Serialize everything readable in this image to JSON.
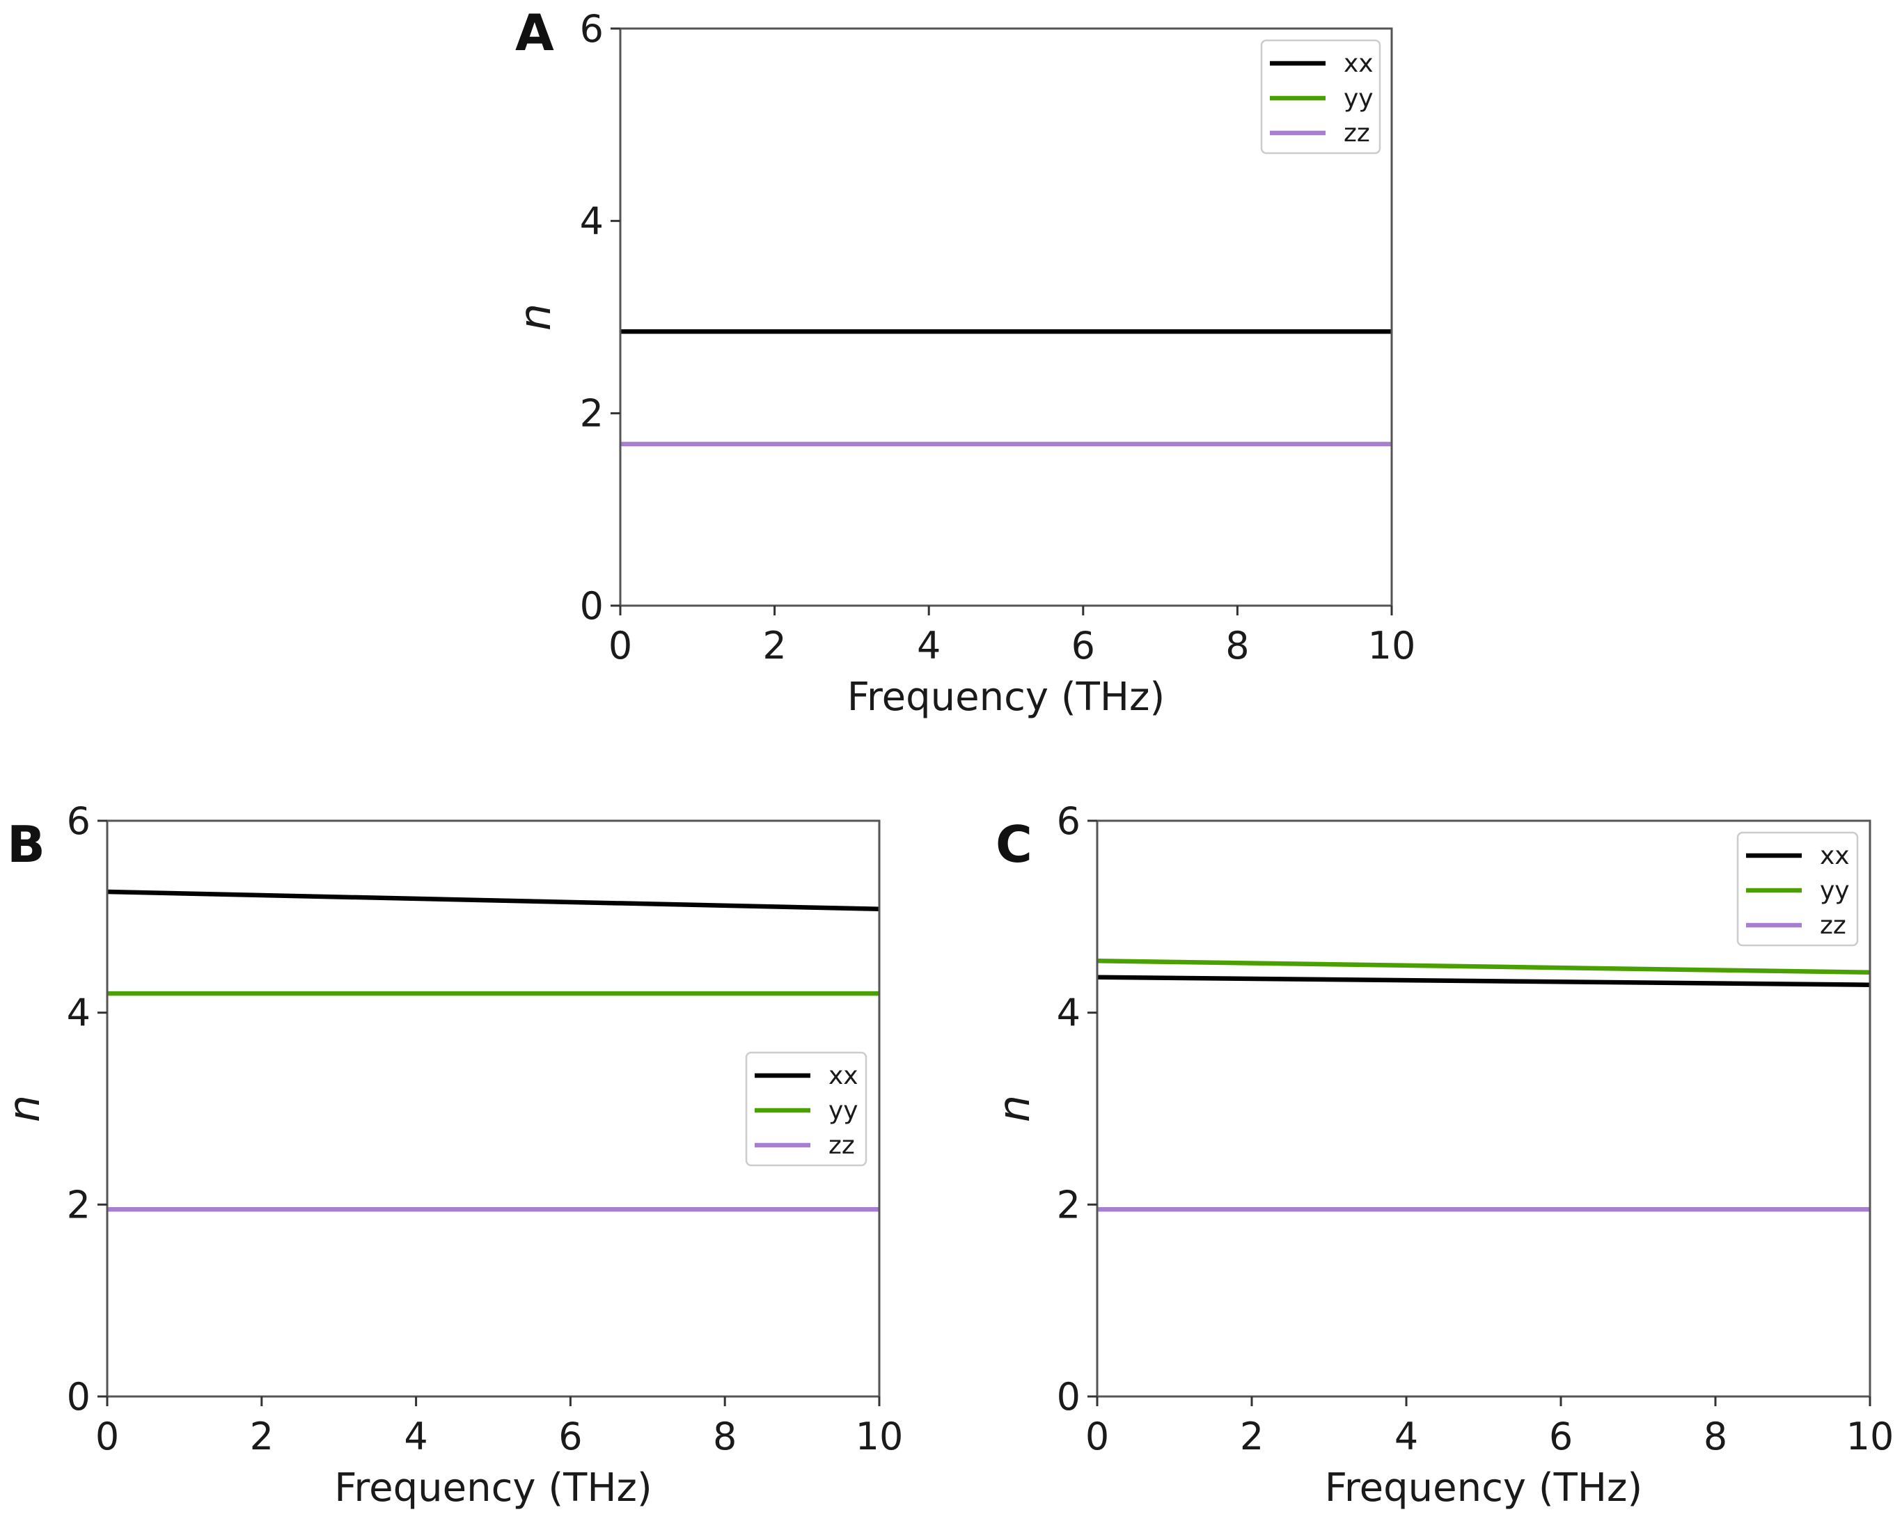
{
  "chart_data": [
    {
      "type": "line",
      "panel": "A",
      "title": "",
      "xlabel": "Frequency (THz)",
      "ylabel": "n",
      "xlim": [
        0,
        10
      ],
      "ylim": [
        0,
        6
      ],
      "xticks": [
        "0",
        "2",
        "4",
        "6",
        "8",
        "10"
      ],
      "yticks": [
        "0",
        "2",
        "4",
        "6"
      ],
      "grid": false,
      "legend_position": "top-right",
      "x": [
        0,
        10
      ],
      "series": [
        {
          "name": "xx",
          "color": "#000000",
          "values": [
            2.85,
            2.85
          ]
        },
        {
          "name": "yy",
          "color": "#4aa000",
          "values": [
            2.85,
            2.85
          ]
        },
        {
          "name": "zz",
          "color": "#a77fcf",
          "values": [
            1.68,
            1.68
          ]
        }
      ]
    },
    {
      "type": "line",
      "panel": "B",
      "title": "",
      "xlabel": "Frequency (THz)",
      "ylabel": "n",
      "xlim": [
        0,
        10
      ],
      "ylim": [
        0,
        6
      ],
      "xticks": [
        "0",
        "2",
        "4",
        "6",
        "8",
        "10"
      ],
      "yticks": [
        "0",
        "2",
        "4",
        "6"
      ],
      "grid": false,
      "legend_position": "center-right",
      "x": [
        0,
        10
      ],
      "series": [
        {
          "name": "xx",
          "color": "#000000",
          "values": [
            5.26,
            5.08
          ]
        },
        {
          "name": "yy",
          "color": "#4aa000",
          "values": [
            4.2,
            4.2
          ]
        },
        {
          "name": "zz",
          "color": "#a77fcf",
          "values": [
            1.95,
            1.95
          ]
        }
      ]
    },
    {
      "type": "line",
      "panel": "C",
      "title": "",
      "xlabel": "Frequency (THz)",
      "ylabel": "n",
      "xlim": [
        0,
        10
      ],
      "ylim": [
        0,
        6
      ],
      "xticks": [
        "0",
        "2",
        "4",
        "6",
        "8",
        "10"
      ],
      "yticks": [
        "0",
        "2",
        "4",
        "6"
      ],
      "grid": false,
      "legend_position": "top-right",
      "x": [
        0,
        10
      ],
      "series": [
        {
          "name": "xx",
          "color": "#000000",
          "values": [
            4.37,
            4.29
          ]
        },
        {
          "name": "yy",
          "color": "#4aa000",
          "values": [
            4.54,
            4.42
          ]
        },
        {
          "name": "zz",
          "color": "#a77fcf",
          "values": [
            1.95,
            1.95
          ]
        }
      ]
    }
  ]
}
